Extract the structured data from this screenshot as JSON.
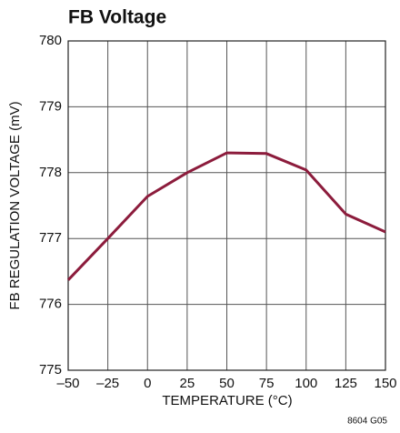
{
  "chart_data": {
    "type": "line",
    "title": "FB Voltage",
    "xlabel": "TEMPERATURE (°C)",
    "ylabel": "FB REGULATION VOLTAGE (mV)",
    "annotation": "8604 G05",
    "x": [
      -50,
      -25,
      0,
      25,
      50,
      75,
      100,
      125,
      150
    ],
    "series": [
      {
        "name": "FB Voltage",
        "color": "#8c1c3c",
        "values": [
          776.37,
          777.0,
          777.64,
          778.0,
          778.3,
          778.29,
          778.04,
          777.37,
          777.1
        ]
      }
    ],
    "xlim": [
      -50,
      150
    ],
    "xticks": [
      {
        "value": -50,
        "label": "–50"
      },
      {
        "value": -25,
        "label": "–25"
      },
      0,
      25,
      50,
      75,
      100,
      125,
      150
    ],
    "ylim": [
      775,
      780
    ],
    "yticks": [
      775,
      776,
      777,
      778,
      779,
      780
    ],
    "grid": true
  }
}
